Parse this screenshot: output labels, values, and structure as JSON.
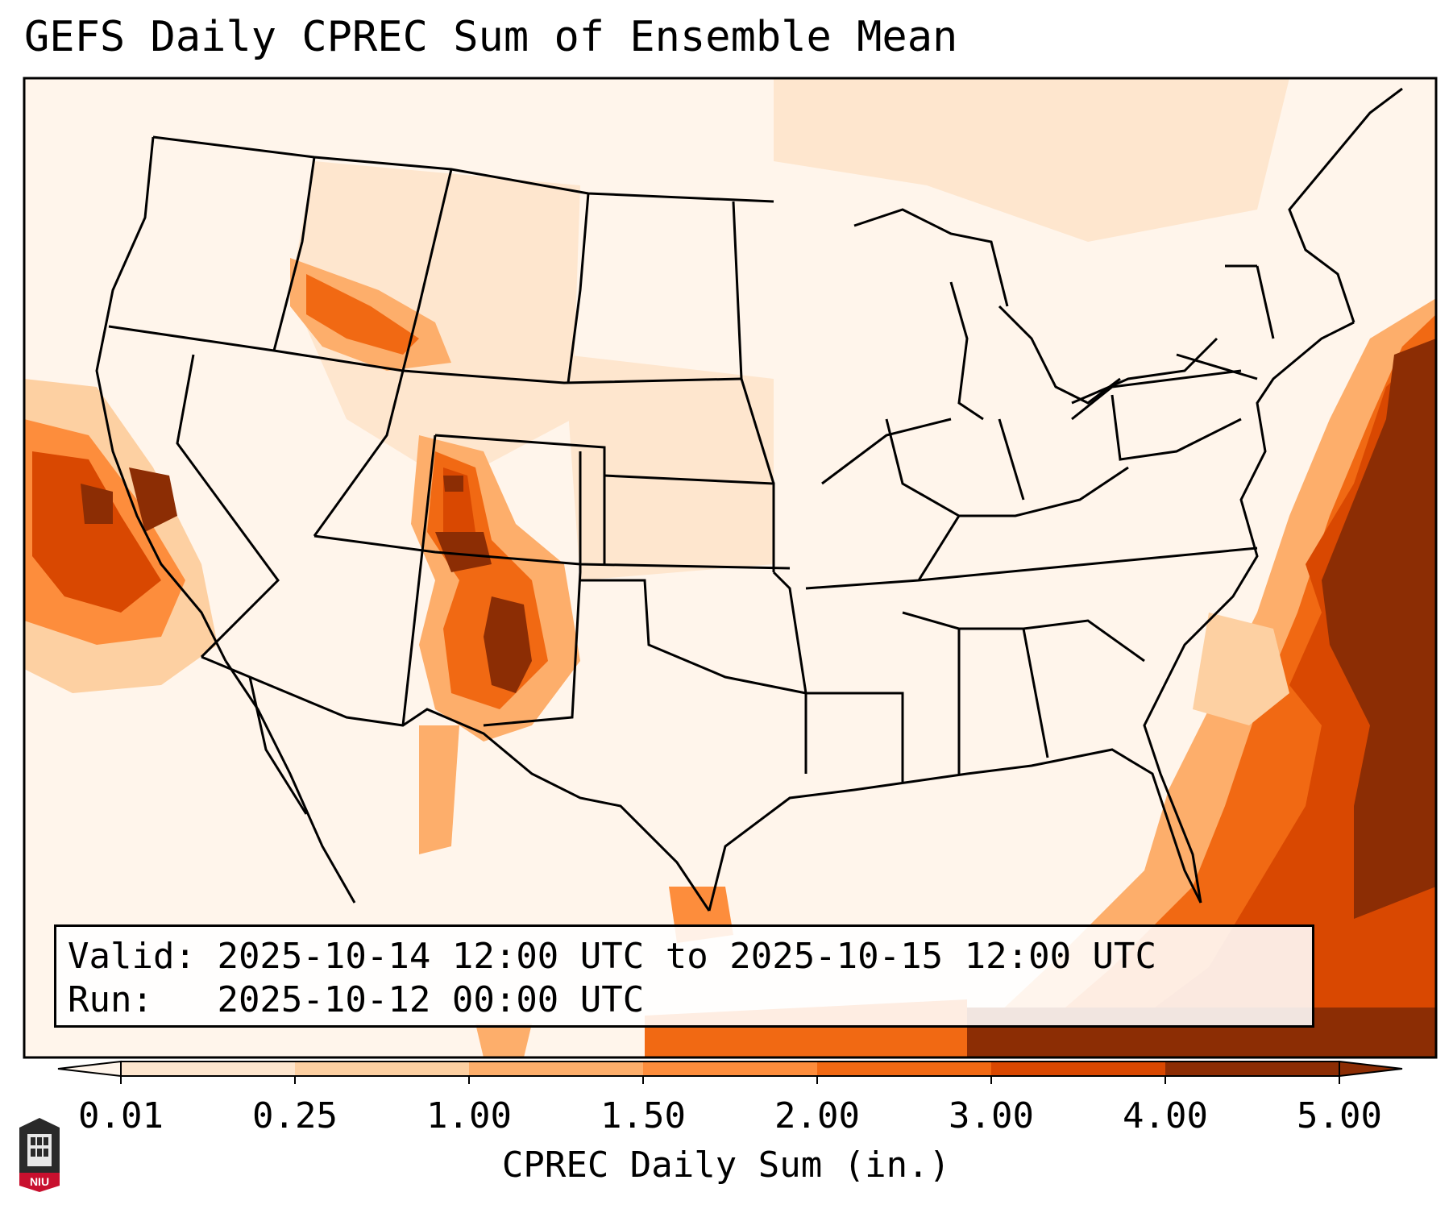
{
  "title": "GEFS Daily CPREC Sum of Ensemble Mean",
  "info": {
    "valid_label": "Valid:",
    "valid_text": "2025-10-14 12:00 UTC to 2025-10-15 12:00 UTC",
    "run_label": "Run:",
    "run_text": "2025-10-12 00:00 UTC"
  },
  "colorbar": {
    "label": "CPREC Daily Sum (in.)",
    "ticks": [
      "0.01",
      "0.25",
      "1.00",
      "1.50",
      "2.00",
      "3.00",
      "4.00",
      "5.00"
    ],
    "colors": [
      "#fff5eb",
      "#fee6ce",
      "#fdd0a2",
      "#fdae6b",
      "#fd8d3c",
      "#f16913",
      "#d94801",
      "#8c2d04"
    ],
    "extend": "both"
  },
  "logo": {
    "text": "NIU",
    "colors": {
      "shield": "#2a2a2a",
      "band": "#c8102e"
    }
  },
  "map": {
    "projection": "lambert-conformal",
    "region": "CONUS"
  }
}
